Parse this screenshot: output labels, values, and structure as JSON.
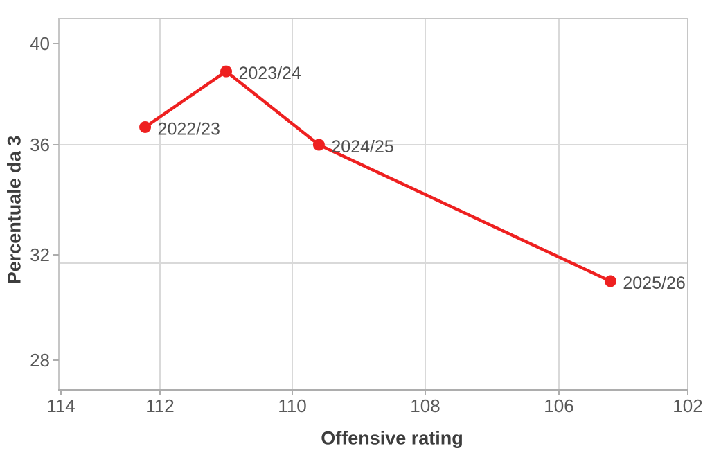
{
  "chart_data": {
    "type": "line",
    "xlabel": "Offensive rating",
    "ylabel": "Percentuale da 3",
    "x_axis": {
      "ticks": [
        114,
        112,
        110,
        108,
        106,
        102
      ],
      "reversed": true,
      "range": [
        114,
        102
      ]
    },
    "y_axis": {
      "ticks": [
        40,
        36,
        32,
        28
      ],
      "range": [
        26.9,
        41.0
      ]
    },
    "grid": true,
    "legend": "none",
    "series": [
      {
        "color": "#ee2020",
        "marker": "circle",
        "points": [
          {
            "label": "2022/23",
            "x": 112.3,
            "y": 36.7
          },
          {
            "label": "2023/24",
            "x": 111.0,
            "y": 38.9
          },
          {
            "label": "2024/25",
            "x": 109.6,
            "y": 36.0
          },
          {
            "label": "2025/26",
            "x": 104.4,
            "y": 31.0
          }
        ]
      }
    ],
    "colors": {
      "line": "#ee2020",
      "tick_text": "#595959",
      "data_label_text": "#4f4f4f",
      "axis_title_text": "#3d3d3d",
      "gridline": "#d9d9d9",
      "plot_border": "#c6c6c6",
      "bottom_axis": "#adadad",
      "background": "#ffffff"
    }
  }
}
